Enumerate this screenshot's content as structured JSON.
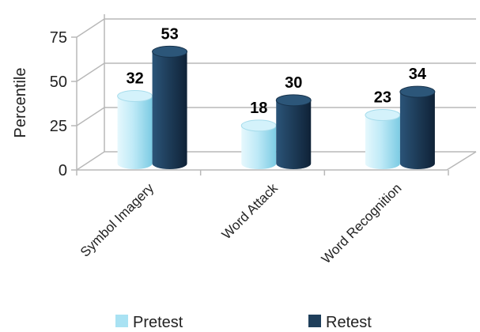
{
  "chart_data": {
    "type": "bar",
    "title": "",
    "xlabel": "",
    "ylabel": "Percentile",
    "ylim": [
      0,
      75
    ],
    "yticks": [
      0,
      25,
      50,
      75
    ],
    "grid": true,
    "legend_position": "bottom",
    "categories": [
      "Symbol Imagery",
      "Word Attack",
      "Word Recognition"
    ],
    "series": [
      {
        "name": "Pretest",
        "values": [
          32,
          18,
          23
        ],
        "color": "#a9e2f3"
      },
      {
        "name": "Retest",
        "values": [
          53,
          30,
          34
        ],
        "color": "#1f3f5b"
      }
    ]
  }
}
